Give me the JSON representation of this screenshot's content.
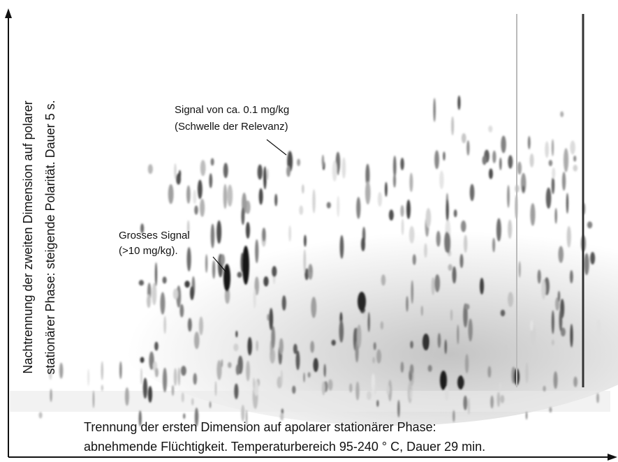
{
  "axes": {
    "y": {
      "lines": [
        "Nachtrennung der zweiten Dimension auf polarer",
        "stationärer Phase: steigende Polarität. Dauer 5 s."
      ]
    },
    "x": {
      "lines": [
        "Trennung der ersten Dimension auf apolarer stationärer Phase:",
        "abnehmende Flüchtigkeit. Temperaturbereich 95-240 ° C, Dauer 29 min."
      ]
    }
  },
  "annotations": [
    {
      "lines": [
        "Signal von ca. 0.1 mg/kg",
        "(Schwelle der Relevanz)"
      ]
    },
    {
      "lines": [
        "Grosses Signal",
        "(>10 mg/kg)."
      ]
    }
  ]
}
